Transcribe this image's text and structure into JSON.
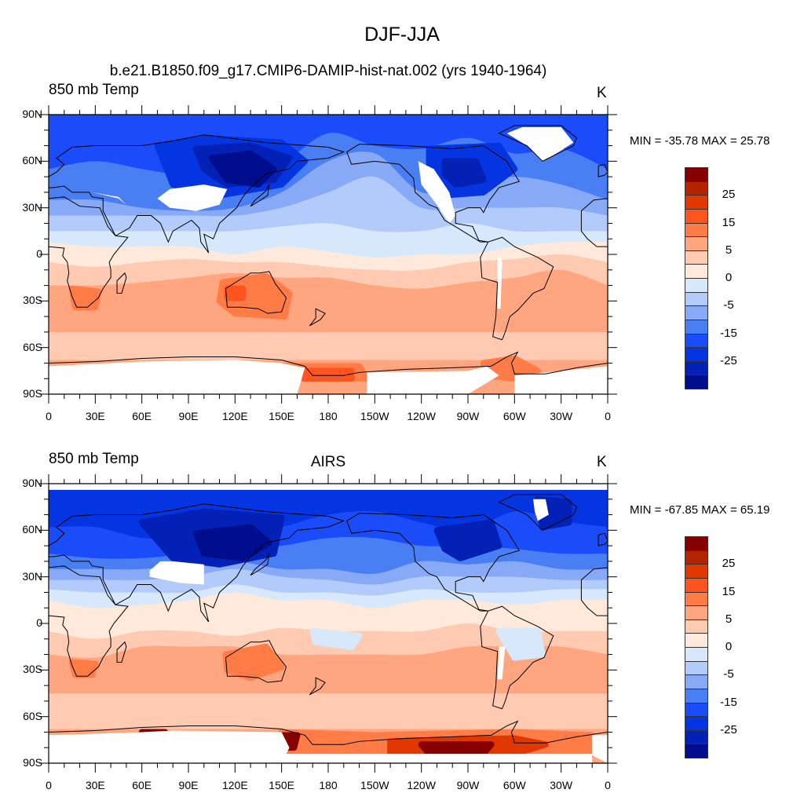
{
  "title": "DJF-JJA",
  "panels": [
    {
      "left_string": "850 mb Temp",
      "center_string": "b.e21.B1850.f09_g17.CMIP6-DAMIP-hist-nat.002 (yrs 1940-1964)",
      "right_string": "K",
      "minmax": "MIN = -35.78 MAX =  25.78"
    },
    {
      "left_string": "850 mb Temp",
      "center_string": "AIRS",
      "right_string": "K",
      "minmax": "MIN = -67.85 MAX =  65.19"
    }
  ],
  "lat_labels": [
    "90N",
    "60N",
    "30N",
    "0",
    "30S",
    "60S",
    "90S"
  ],
  "lon_labels": [
    "0",
    "30E",
    "60E",
    "90E",
    "120E",
    "150E",
    "180",
    "150W",
    "120W",
    "90W",
    "60W",
    "30W",
    "0"
  ],
  "colorbar": {
    "colors": [
      "#870000",
      "#b42400",
      "#e03800",
      "#ff5420",
      "#ff7c46",
      "#ffa680",
      "#ffcab2",
      "#ffe9da",
      "#d7e8fc",
      "#b2cbfa",
      "#88aaf6",
      "#4a7ff4",
      "#1a4cfa",
      "#0535e0",
      "#0321b4",
      "#000d8c"
    ],
    "labels": [
      "25",
      "15",
      "5",
      "0",
      "-5",
      "-15",
      "-25"
    ]
  }
}
